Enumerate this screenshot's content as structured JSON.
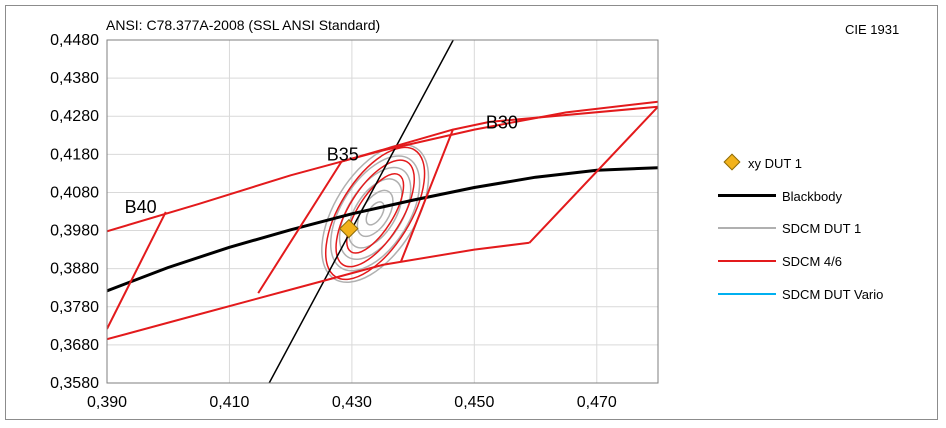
{
  "chart_data": {
    "type": "scatter",
    "title": "ANSI: C78.377A-2008 (SSL ANSI Standard)",
    "color_space_label": "CIE 1931",
    "xlim": [
      0.39,
      0.48
    ],
    "ylim": [
      0.358,
      0.448
    ],
    "x_ticks": [
      {
        "value": 0.39,
        "label": "0,390"
      },
      {
        "value": 0.41,
        "label": "0,410"
      },
      {
        "value": 0.43,
        "label": "0,430"
      },
      {
        "value": 0.45,
        "label": "0,450"
      },
      {
        "value": 0.47,
        "label": "0,470"
      }
    ],
    "y_ticks": [
      {
        "value": 0.358,
        "label": "0,3580"
      },
      {
        "value": 0.368,
        "label": "0,3680"
      },
      {
        "value": 0.378,
        "label": "0,3780"
      },
      {
        "value": 0.388,
        "label": "0,3880"
      },
      {
        "value": 0.398,
        "label": "0,3980"
      },
      {
        "value": 0.408,
        "label": "0,4080"
      },
      {
        "value": 0.418,
        "label": "0,4180"
      },
      {
        "value": 0.428,
        "label": "0,4280"
      },
      {
        "value": 0.438,
        "label": "0,4380"
      },
      {
        "value": 0.448,
        "label": "0,4480"
      }
    ],
    "grid": true,
    "legend_position": "right",
    "legend": [
      {
        "label": "xy DUT 1",
        "marker": "diamond",
        "color": "#f2b21b"
      },
      {
        "label": "Blackbody",
        "marker": "line",
        "color": "#000000"
      },
      {
        "label": "SDCM DUT 1",
        "marker": "line",
        "color": "#b0b0b0"
      },
      {
        "label": "SDCM 4/6",
        "marker": "line",
        "color": "#e31a1c"
      },
      {
        "label": "SDCM DUT Vario",
        "marker": "line",
        "color": "#00b0f0"
      }
    ],
    "points": [
      {
        "series": "xy DUT 1",
        "x": 0.4295,
        "y": 0.3985
      }
    ],
    "lines": [
      {
        "name": "Blackbody",
        "color": "#000000",
        "width": 3,
        "points": [
          [
            0.39,
            0.3822
          ],
          [
            0.4,
            0.3883
          ],
          [
            0.41,
            0.3936
          ],
          [
            0.42,
            0.3982
          ],
          [
            0.43,
            0.4024
          ],
          [
            0.44,
            0.406
          ],
          [
            0.45,
            0.4093
          ],
          [
            0.46,
            0.412
          ],
          [
            0.47,
            0.4138
          ],
          [
            0.48,
            0.4145
          ]
        ]
      },
      {
        "name": "Isotemperature line",
        "color": "#000000",
        "width": 1.5,
        "points": [
          [
            0.4165,
            0.358
          ],
          [
            0.4468,
            0.4487
          ]
        ]
      },
      {
        "name": "SDCM 4/6 upper boundary",
        "color": "#e31a1c",
        "width": 2,
        "points": [
          [
            0.39,
            0.3978
          ],
          [
            0.405,
            0.405
          ],
          [
            0.42,
            0.4125
          ],
          [
            0.435,
            0.419
          ],
          [
            0.45,
            0.4245
          ],
          [
            0.465,
            0.429
          ],
          [
            0.48,
            0.4318
          ]
        ]
      },
      {
        "name": "SDCM 4/6 lower boundary",
        "color": "#e31a1c",
        "width": 2,
        "points": [
          [
            0.39,
            0.3695
          ],
          [
            0.405,
            0.376
          ],
          [
            0.42,
            0.3825
          ],
          [
            0.435,
            0.389
          ],
          [
            0.45,
            0.393
          ],
          [
            0.459,
            0.3948
          ]
        ]
      },
      {
        "name": "B40 left edge",
        "color": "#e31a1c",
        "width": 2,
        "points": [
          [
            0.39,
            0.3722
          ],
          [
            0.3996,
            0.4029
          ]
        ]
      },
      {
        "name": "B35 quadrangle",
        "color": "#e31a1c",
        "width": 2,
        "points": [
          [
            0.4147,
            0.3816
          ],
          [
            0.4283,
            0.4161
          ],
          [
            0.4465,
            0.4245
          ],
          [
            0.438,
            0.3898
          ]
        ]
      },
      {
        "name": "B30 quadrangle",
        "color": "#e31a1c",
        "width": 2,
        "points": [
          [
            0.4465,
            0.4245
          ],
          [
            0.4525,
            0.4265
          ],
          [
            0.48,
            0.4305
          ],
          [
            0.459,
            0.3948
          ]
        ]
      }
    ],
    "ellipses": {
      "center": [
        0.4338,
        0.4025
      ],
      "angle_deg": -58,
      "gray_semi_axes": [
        [
          0.0021,
          0.0011
        ],
        [
          0.0042,
          0.0022
        ],
        [
          0.0063,
          0.0033
        ],
        [
          0.0084,
          0.0044
        ],
        [
          0.0105,
          0.0055
        ],
        [
          0.0126,
          0.0066
        ]
      ],
      "red_semi_axes": [
        [
          0.0074,
          0.0029
        ],
        [
          0.0099,
          0.0043
        ],
        [
          0.0122,
          0.0057
        ]
      ],
      "gray_color": "#b0b0b0",
      "red_color": "#e31a1c"
    },
    "annotations": [
      {
        "text": "B40",
        "x": 0.3955,
        "y": 0.4026
      },
      {
        "text": "B35",
        "x": 0.4285,
        "y": 0.4164
      },
      {
        "text": "B30",
        "x": 0.4545,
        "y": 0.4248
      }
    ]
  }
}
